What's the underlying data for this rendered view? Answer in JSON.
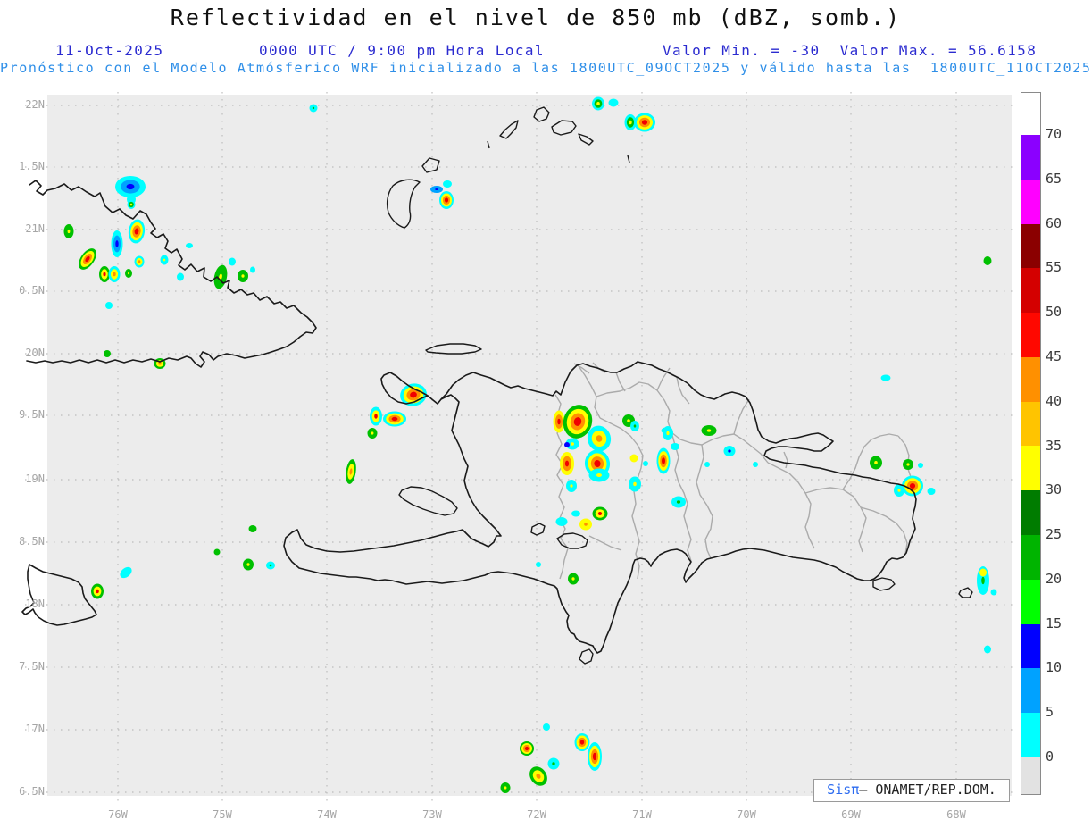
{
  "header": {
    "title": "Reflectividad en el nivel de 850 mb (dBZ, somb.)",
    "date": "11-Oct-2025",
    "time": "0000 UTC / 9:00 pm Hora Local",
    "minmax": "Valor Min. = -30  Valor Max. = 56.6158",
    "forecast_line": "Pronóstico con el Modelo Atmósferico WRF inicializado a las 1800UTC_09OCT2025 y válido hasta las  1800UTC_11OCT2025"
  },
  "map": {
    "lat_labels": [
      "22N",
      "1.5N",
      "21N",
      "0.5N",
      "20N",
      "9.5N",
      "19N",
      "8.5N",
      "18N",
      "7.5N",
      "17N",
      "6.5N"
    ],
    "lon_labels": [
      "76W",
      "75W",
      "74W",
      "73W",
      "72W",
      "71W",
      "70W",
      "69W",
      "68W"
    ],
    "background_color": "#ececec",
    "cells": [
      [
        146,
        209,
        34,
        24,
        0,
        [
          "#00ffff",
          "#00a2ff",
          "#0000ff"
        ]
      ],
      [
        147,
        223,
        10,
        12,
        0,
        [
          "#00ffff"
        ]
      ],
      [
        147,
        229,
        9,
        10,
        0,
        [
          "#00ffff",
          "#00c000",
          "#ffff00"
        ]
      ],
      [
        77,
        259,
        11,
        16,
        0,
        [
          "#00c000",
          "#ffff00"
        ]
      ],
      [
        131,
        273,
        13,
        30,
        0,
        [
          "#00ffff",
          "#00a2ff",
          "#0000ff"
        ]
      ],
      [
        153,
        259,
        18,
        27,
        8,
        [
          "#00ffff",
          "#ffff00",
          "#ff9000",
          "#f00000"
        ]
      ],
      [
        98,
        290,
        15,
        27,
        35,
        [
          "#00c000",
          "#ffff00",
          "#ff9000",
          "#f00000"
        ]
      ],
      [
        117,
        307,
        12,
        18,
        0,
        [
          "#00c000",
          "#ffff00",
          "#f00000"
        ]
      ],
      [
        128,
        307,
        13,
        18,
        0,
        [
          "#00ffff",
          "#ffff00",
          "#ff9000"
        ]
      ],
      [
        144,
        306,
        8,
        10,
        0,
        [
          "#00c000",
          "#ffff00"
        ]
      ],
      [
        156,
        293,
        11,
        13,
        0,
        [
          "#00ffff",
          "#ffff00",
          "#ff9000"
        ]
      ],
      [
        184,
        291,
        9,
        11,
        0,
        [
          "#00ffff",
          "#ffff00"
        ]
      ],
      [
        202,
        310,
        8,
        9,
        0,
        [
          "#00ffff"
        ]
      ],
      [
        247,
        310,
        14,
        27,
        12,
        [
          "#00c000",
          "#ffff00"
        ]
      ],
      [
        272,
        309,
        12,
        14,
        0,
        [
          "#00c000",
          "#ffff00"
        ]
      ],
      [
        260,
        293,
        8,
        9,
        0,
        [
          "#00ffff"
        ]
      ],
      [
        283,
        302,
        6,
        7,
        0,
        [
          "#00ffff"
        ]
      ],
      [
        212,
        275,
        8,
        6,
        0,
        [
          "#00ffff"
        ]
      ],
      [
        179,
        407,
        13,
        12,
        0,
        [
          "#00c000",
          "#ffff00",
          "#ff9000"
        ]
      ],
      [
        122,
        342,
        8,
        8,
        0,
        [
          "#00ffff"
        ]
      ],
      [
        120,
        396,
        8,
        8,
        0,
        [
          "#00c000"
        ]
      ],
      [
        351,
        121,
        9,
        9,
        0,
        [
          "#00ffff",
          "#00c000"
        ]
      ],
      [
        670,
        116,
        14,
        15,
        0,
        [
          "#00ffff",
          "#00c000",
          "#ffff00"
        ]
      ],
      [
        687,
        115,
        11,
        9,
        0,
        [
          "#00ffff"
        ]
      ],
      [
        706,
        137,
        13,
        18,
        0,
        [
          "#00ffff",
          "#00c000",
          "#ffff00"
        ]
      ],
      [
        722,
        137,
        24,
        21,
        0,
        [
          "#00ffff",
          "#ffff00",
          "#ff9000",
          "#f00000"
        ]
      ],
      [
        489,
        212,
        14,
        8,
        0,
        [
          "#00a2ff",
          "#0000ff"
        ]
      ],
      [
        500,
        224,
        16,
        20,
        0,
        [
          "#00ffff",
          "#ffff00",
          "#ff9000",
          "#f00000"
        ]
      ],
      [
        501,
        206,
        10,
        8,
        0,
        [
          "#00ffff"
        ]
      ],
      [
        463,
        442,
        30,
        25,
        -12,
        [
          "#00ffff",
          "#ffff00",
          "#ff9000",
          "#f00000"
        ]
      ],
      [
        421,
        466,
        14,
        21,
        0,
        [
          "#00ffff",
          "#ffff00",
          "#f00000"
        ]
      ],
      [
        442,
        469,
        26,
        17,
        0,
        [
          "#00ffff",
          "#ffff00",
          "#ff9000",
          "#f00000"
        ]
      ],
      [
        417,
        485,
        11,
        12,
        0,
        [
          "#00c000",
          "#ffff00"
        ]
      ],
      [
        393,
        528,
        11,
        28,
        8,
        [
          "#00c000",
          "#ffff00",
          "#ff9000"
        ]
      ],
      [
        626,
        472,
        13,
        25,
        0,
        [
          "#ffff00",
          "#ff9000",
          "#f00000"
        ]
      ],
      [
        647,
        472,
        32,
        38,
        15,
        [
          "#00c000",
          "#ffff00",
          "#ff9000",
          "#f00000"
        ]
      ],
      [
        671,
        491,
        26,
        29,
        -15,
        [
          "#00ffff",
          "#ffff00",
          "#ff9000"
        ]
      ],
      [
        641,
        497,
        15,
        13,
        0,
        [
          "#00ffff",
          "#ffff00"
        ]
      ],
      [
        635,
        498,
        6,
        6,
        0,
        [
          "#0000ff"
        ]
      ],
      [
        635,
        519,
        16,
        26,
        0,
        [
          "#ffff00",
          "#ff9000",
          "#f00000"
        ]
      ],
      [
        669,
        519,
        28,
        31,
        -8,
        [
          "#00ffff",
          "#ffff00",
          "#ff9000",
          "#f00000"
        ]
      ],
      [
        671,
        532,
        23,
        15,
        0,
        [
          "#00ffff",
          "#ffff00"
        ]
      ],
      [
        640,
        544,
        12,
        14,
        0,
        [
          "#00ffff",
          "#ffff00"
        ]
      ],
      [
        672,
        575,
        17,
        15,
        0,
        [
          "#00c000",
          "#ffff00",
          "#f00000"
        ]
      ],
      [
        656,
        587,
        14,
        13,
        0,
        [
          "#ffff00",
          "#ff9000"
        ]
      ],
      [
        645,
        575,
        10,
        7,
        0,
        [
          "#00ffff"
        ]
      ],
      [
        629,
        584,
        13,
        10,
        0,
        [
          "#00ffff"
        ]
      ],
      [
        704,
        471,
        14,
        14,
        0,
        [
          "#00c000",
          "#ffff00"
        ]
      ],
      [
        711,
        477,
        10,
        12,
        0,
        [
          "#00ffff",
          "#00c000"
        ]
      ],
      [
        746,
        482,
        11,
        7,
        0,
        [
          "#00ffff"
        ]
      ],
      [
        748,
        485,
        12,
        16,
        0,
        [
          "#00ffff",
          "#ffff00"
        ]
      ],
      [
        743,
        516,
        15,
        29,
        0,
        [
          "#00ffff",
          "#ffff00",
          "#ff9000",
          "#f00000"
        ]
      ],
      [
        756,
        500,
        10,
        8,
        0,
        [
          "#00ffff"
        ]
      ],
      [
        710,
        513,
        9,
        9,
        0,
        [
          "#ffff00"
        ]
      ],
      [
        711,
        542,
        14,
        17,
        0,
        [
          "#00ffff",
          "#ffff00"
        ]
      ],
      [
        723,
        519,
        6,
        6,
        0,
        [
          "#00ffff"
        ]
      ],
      [
        794,
        482,
        17,
        12,
        0,
        [
          "#00c000",
          "#ffff00"
        ]
      ],
      [
        817,
        505,
        13,
        12,
        0,
        [
          "#00ffff",
          "#0000ff"
        ]
      ],
      [
        792,
        520,
        6,
        6,
        0,
        [
          "#00ffff"
        ]
      ],
      [
        846,
        520,
        6,
        6,
        0,
        [
          "#00ffff"
        ]
      ],
      [
        760,
        562,
        16,
        13,
        0,
        [
          "#00ffff",
          "#00c000"
        ]
      ],
      [
        243,
        618,
        7,
        7,
        0,
        [
          "#00c000"
        ]
      ],
      [
        278,
        632,
        12,
        13,
        0,
        [
          "#00c000",
          "#ffff00"
        ]
      ],
      [
        303,
        633,
        10,
        9,
        0,
        [
          "#00ffff",
          "#00c000"
        ]
      ],
      [
        283,
        592,
        9,
        8,
        0,
        [
          "#00c000"
        ]
      ],
      [
        141,
        641,
        15,
        10,
        -40,
        [
          "#00ffff"
        ]
      ],
      [
        109,
        662,
        14,
        17,
        0,
        [
          "#00c000",
          "#ffff00",
          "#f00000"
        ]
      ],
      [
        603,
        632,
        6,
        6,
        0,
        [
          "#00ffff"
        ]
      ],
      [
        642,
        648,
        12,
        13,
        0,
        [
          "#00c000",
          "#ffff00"
        ]
      ],
      [
        981,
        518,
        14,
        15,
        0,
        [
          "#00c000",
          "#ffff00"
        ]
      ],
      [
        1017,
        520,
        12,
        12,
        0,
        [
          "#00c000",
          "#ffff00"
        ]
      ],
      [
        1031,
        521,
        6,
        6,
        0,
        [
          "#00ffff"
        ]
      ],
      [
        1022,
        544,
        24,
        23,
        0,
        [
          "#00ffff",
          "#ffff00",
          "#ff9000",
          "#f00000"
        ]
      ],
      [
        1007,
        549,
        12,
        14,
        0,
        [
          "#00ffff",
          "#ffff00"
        ]
      ],
      [
        1043,
        550,
        9,
        8,
        0,
        [
          "#00ffff"
        ]
      ],
      [
        992,
        423,
        11,
        7,
        0,
        [
          "#00ffff"
        ]
      ],
      [
        1101,
        650,
        14,
        32,
        0,
        [
          "#00ffff",
          "#00c000"
        ]
      ],
      [
        1101,
        641,
        8,
        9,
        0,
        [
          "#ffff00"
        ]
      ],
      [
        1113,
        663,
        7,
        7,
        0,
        [
          "#00ffff"
        ]
      ],
      [
        1106,
        292,
        9,
        10,
        0,
        [
          "#00c000"
        ]
      ],
      [
        1106,
        727,
        8,
        9,
        0,
        [
          "#00ffff"
        ]
      ],
      [
        612,
        814,
        8,
        8,
        0,
        [
          "#00ffff"
        ]
      ],
      [
        590,
        838,
        16,
        16,
        0,
        [
          "#00c000",
          "#ffff00",
          "#ff9000",
          "#f00000"
        ]
      ],
      [
        652,
        831,
        17,
        20,
        0,
        [
          "#00ffff",
          "#ffff00",
          "#ff9000",
          "#f00000"
        ]
      ],
      [
        666,
        847,
        16,
        32,
        0,
        [
          "#00ffff",
          "#ffff00",
          "#ff9000",
          "#f00000"
        ]
      ],
      [
        620,
        855,
        13,
        13,
        0,
        [
          "#00ffff",
          "#00c000"
        ]
      ],
      [
        603,
        869,
        18,
        23,
        -35,
        [
          "#00c000",
          "#ffff00",
          "#ff9000"
        ]
      ],
      [
        566,
        882,
        11,
        12,
        0,
        [
          "#00c000",
          "#ffff00"
        ]
      ]
    ]
  },
  "colorbar": {
    "tick_labels": [
      "70",
      "65",
      "60",
      "55",
      "50",
      "45",
      "40",
      "35",
      "30",
      "25",
      "20",
      "15",
      "10",
      "5",
      "0"
    ],
    "segments": [
      "#ffffff",
      "#8b00ff",
      "#ff00ff",
      "#8b0000",
      "#d40000",
      "#ff0800",
      "#ff9000",
      "#ffc400",
      "#ffff00",
      "#007c00",
      "#00b400",
      "#00ff00",
      "#0000ff",
      "#00a2ff",
      "#00ffff",
      "#e2e2e2"
    ]
  },
  "attribution": {
    "sis": "Sis",
    "pi": "π",
    "rest": "– ONAMET/REP.DOM."
  }
}
